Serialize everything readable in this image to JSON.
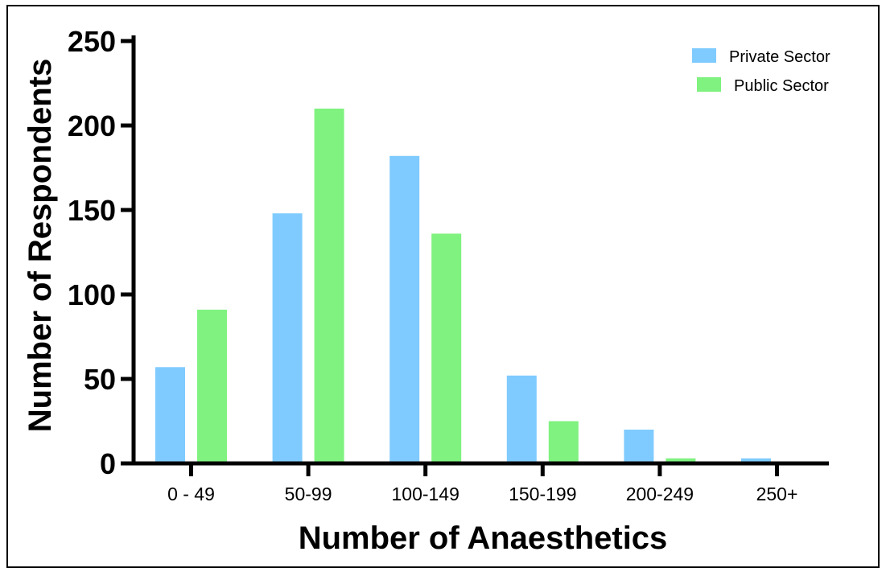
{
  "chart_data": {
    "type": "bar",
    "title": "",
    "xlabel": "Number of Anaesthetics",
    "ylabel": "Number of Respondents",
    "ylim": [
      0,
      250
    ],
    "yticks": [
      0,
      50,
      100,
      150,
      200,
      250
    ],
    "categories": [
      "0 - 49",
      "50-99",
      "100-149",
      "150-199",
      "200-249",
      "250+"
    ],
    "series": [
      {
        "name": "Private Sector",
        "color": "#7fcbff",
        "values": [
          57,
          148,
          182,
          52,
          20,
          3
        ]
      },
      {
        "name": "Public Sector",
        "color": "#7ff27f",
        "values": [
          91,
          210,
          136,
          25,
          3,
          0
        ]
      }
    ],
    "legend_position": "top-right",
    "grid": false
  }
}
